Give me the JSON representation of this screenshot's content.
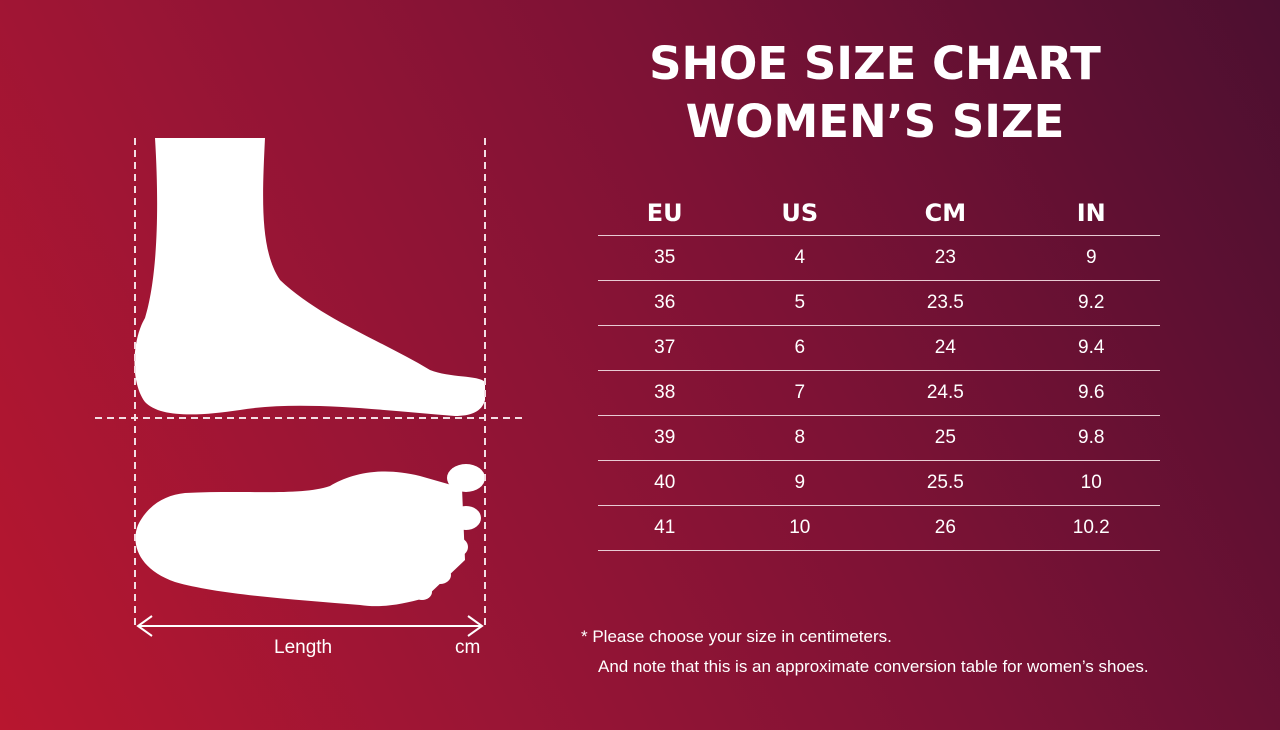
{
  "title": {
    "line1": "SHOE SIZE CHART",
    "line2": "WOMEN’S SIZE"
  },
  "diagram": {
    "length_label": "Length",
    "unit_label": "cm"
  },
  "table": {
    "headers": [
      "EU",
      "US",
      "CM",
      "IN"
    ],
    "rows": [
      [
        "35",
        "4",
        "23",
        "9"
      ],
      [
        "36",
        "5",
        "23.5",
        "9.2"
      ],
      [
        "37",
        "6",
        "24",
        "9.4"
      ],
      [
        "38",
        "7",
        "24.5",
        "9.6"
      ],
      [
        "39",
        "8",
        "25",
        "9.8"
      ],
      [
        "40",
        "9",
        "25.5",
        "10"
      ],
      [
        "41",
        "10",
        "26",
        "10.2"
      ]
    ]
  },
  "notes": {
    "line1": "*  Please choose your size in centimeters.",
    "line2": "And note that this is an approximate conversion table for women’s shoes."
  },
  "colors": {
    "gradient_start": "#b8162f",
    "gradient_end": "#4c0f30",
    "foreground": "#ffffff"
  }
}
